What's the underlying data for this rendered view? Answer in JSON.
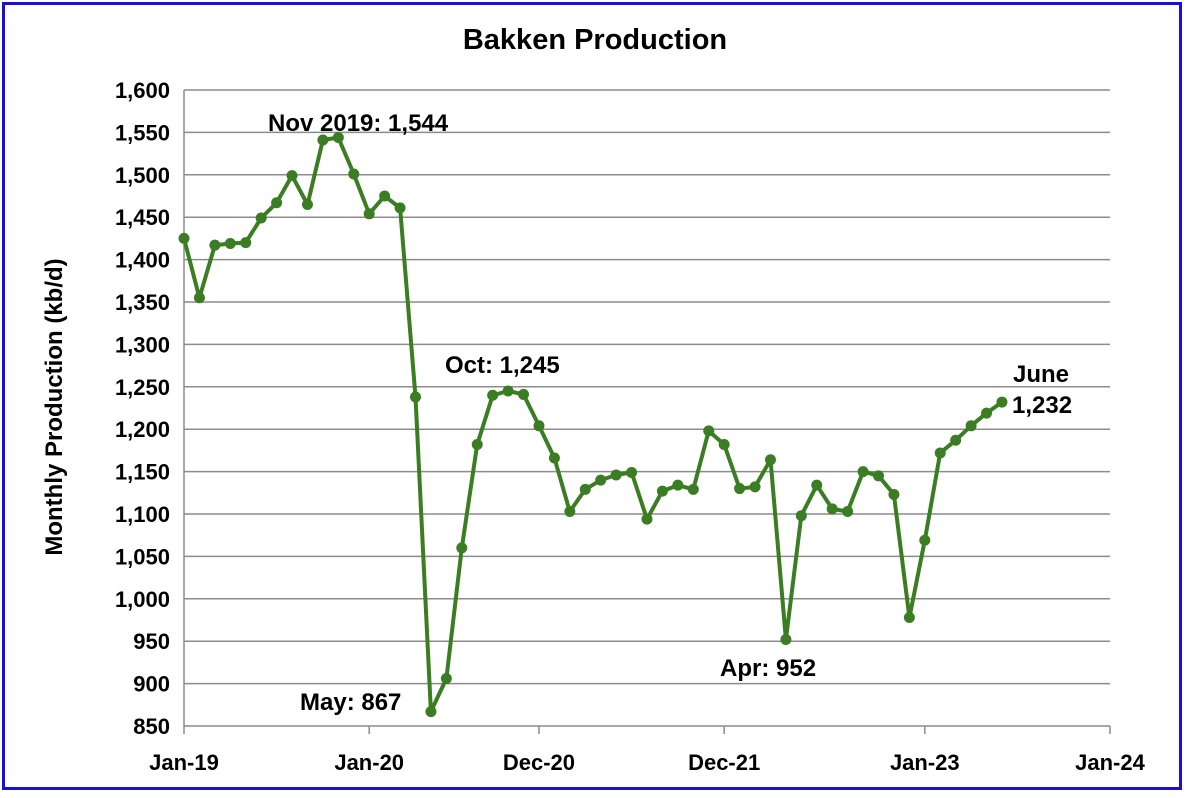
{
  "chart_data": {
    "type": "line",
    "title": "Bakken Production",
    "xlabel": "",
    "ylabel": "Monthly Production (kb/d)",
    "ylim": [
      850,
      1600
    ],
    "y_ticks": [
      "850",
      "900",
      "950",
      "1,000",
      "1,050",
      "1,100",
      "1,150",
      "1,200",
      "1,250",
      "1,300",
      "1,350",
      "1,400",
      "1,450",
      "1,500",
      "1,550",
      "1,600"
    ],
    "x_ticks": [
      "Jan-19",
      "Jan-20",
      "Dec-20",
      "Dec-21",
      "Jan-23",
      "Jan-24"
    ],
    "x_range": [
      "2019-01",
      "2024-01"
    ],
    "grid": "horizontal",
    "legend": "none",
    "line_color": "#3a7d22",
    "series": [
      {
        "x": [
          "2019-01",
          "2019-02",
          "2019-03",
          "2019-04",
          "2019-05",
          "2019-06",
          "2019-07",
          "2019-08",
          "2019-09",
          "2019-10",
          "2019-11",
          "2019-12",
          "2020-01",
          "2020-02",
          "2020-03",
          "2020-04",
          "2020-05",
          "2020-06",
          "2020-07",
          "2020-08",
          "2020-09",
          "2020-10",
          "2020-11",
          "2020-12",
          "2021-01",
          "2021-02",
          "2021-03",
          "2021-04",
          "2021-05",
          "2021-06",
          "2021-07",
          "2021-08",
          "2021-09",
          "2021-10",
          "2021-11",
          "2021-12",
          "2022-01",
          "2022-02",
          "2022-03",
          "2022-04",
          "2022-05",
          "2022-06",
          "2022-07",
          "2022-08",
          "2022-09",
          "2022-10",
          "2022-11",
          "2022-12",
          "2023-01",
          "2023-02",
          "2023-03",
          "2023-04",
          "2023-05",
          "2023-06"
        ],
        "values": [
          1425,
          1355,
          1417,
          1419,
          1420,
          1449,
          1467,
          1499,
          1465,
          1541,
          1544,
          1501,
          1454,
          1475,
          1461,
          1238,
          867,
          906,
          1060,
          1182,
          1240,
          1245,
          1241,
          1204,
          1166,
          1103,
          1129,
          1140,
          1146,
          1149,
          1094,
          1127,
          1134,
          1129,
          1198,
          1182,
          1130,
          1132,
          1164,
          952,
          1098,
          1134,
          1106,
          1103,
          1150,
          1145,
          1123,
          978,
          1069,
          1172,
          1187,
          1204,
          1219,
          1232
        ]
      }
    ],
    "annotations": [
      {
        "text": "Nov 2019: 1,544"
      },
      {
        "text": "Oct: 1,245"
      },
      {
        "text": "May: 867"
      },
      {
        "text": "Apr: 952"
      },
      {
        "text": "June"
      },
      {
        "text": "1,232"
      }
    ]
  }
}
